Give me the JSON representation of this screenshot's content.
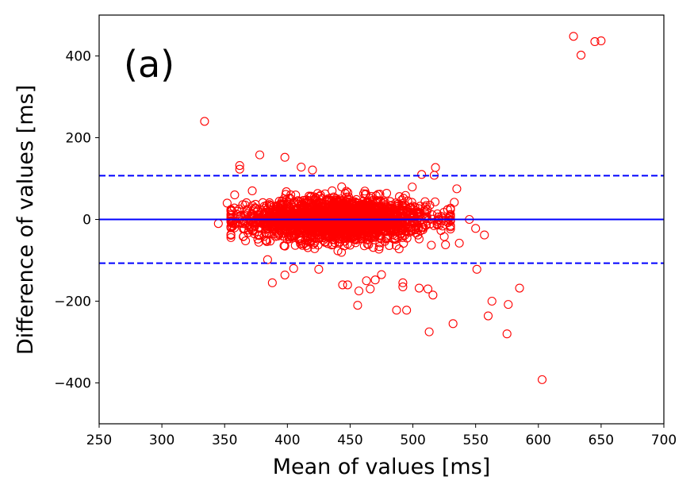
{
  "chart_data": {
    "type": "scatter",
    "panel_label": "(a)",
    "xlabel": "Mean of values [ms]",
    "ylabel": "Difference of values [ms]",
    "xlim": [
      250,
      700
    ],
    "ylim": [
      -500,
      500
    ],
    "x_ticks": [
      250,
      300,
      350,
      400,
      450,
      500,
      550,
      600,
      650,
      700
    ],
    "y_ticks": [
      -400,
      -200,
      0,
      200,
      400
    ],
    "y_tick_labels": [
      "−400",
      "−200",
      "0",
      "200",
      "400"
    ],
    "mean_difference": 0,
    "limits_of_agreement": [
      107,
      -107
    ],
    "colors": {
      "points": "#ff0000",
      "lines": "#0000ff"
    },
    "cluster": {
      "description_points": "dense core of points centered near mean 440 ms, difference 0 ms",
      "x_center": 440,
      "x_spread": 36,
      "y_spread": 28,
      "count": 2200
    },
    "outliers": [
      [
        334,
        240
      ],
      [
        378,
        158
      ],
      [
        398,
        152
      ],
      [
        411,
        128
      ],
      [
        420,
        121
      ],
      [
        362,
        132
      ],
      [
        362,
        123
      ],
      [
        358,
        60
      ],
      [
        352,
        40
      ],
      [
        345,
        -10
      ],
      [
        356,
        -5
      ],
      [
        360,
        20
      ],
      [
        372,
        70
      ],
      [
        388,
        -155
      ],
      [
        398,
        -136
      ],
      [
        405,
        -120
      ],
      [
        425,
        -122
      ],
      [
        444,
        -160
      ],
      [
        448,
        -160
      ],
      [
        456,
        -210
      ],
      [
        457,
        -175
      ],
      [
        463,
        -150
      ],
      [
        466,
        -170
      ],
      [
        470,
        -148
      ],
      [
        475,
        -135
      ],
      [
        487,
        -222
      ],
      [
        495,
        -222
      ],
      [
        492,
        -155
      ],
      [
        492,
        -165
      ],
      [
        505,
        -168
      ],
      [
        512,
        -170
      ],
      [
        513,
        -275
      ],
      [
        516,
        -185
      ],
      [
        532,
        -255
      ],
      [
        551,
        -122
      ],
      [
        560,
        -236
      ],
      [
        563,
        -200
      ],
      [
        576,
        -208
      ],
      [
        575,
        -280
      ],
      [
        585,
        -168
      ],
      [
        603,
        -392
      ],
      [
        628,
        448
      ],
      [
        634,
        402
      ],
      [
        645,
        435
      ],
      [
        650,
        437
      ],
      [
        518,
        127
      ],
      [
        517,
        108
      ],
      [
        507,
        110
      ],
      [
        535,
        75
      ],
      [
        550,
        -22
      ],
      [
        557,
        -38
      ],
      [
        545,
        0
      ],
      [
        537,
        -58
      ],
      [
        526,
        -62
      ],
      [
        525,
        -42
      ],
      [
        533,
        42
      ],
      [
        528,
        -8
      ]
    ]
  }
}
